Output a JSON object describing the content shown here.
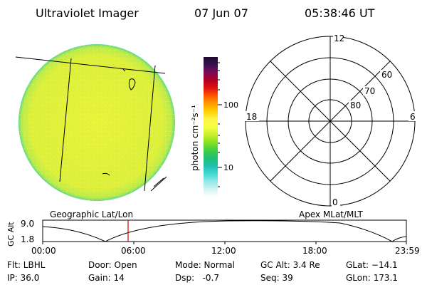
{
  "header": {
    "title": "Ultraviolet Imager",
    "date": "07 Jun 07",
    "time": "05:38:46 UT"
  },
  "colorbar": {
    "label": "photon cm⁻²s⁻¹",
    "ticks": [
      "100",
      "10"
    ],
    "scale": "log",
    "colors": [
      "#1a0a2e",
      "#3a1050",
      "#7a0a5a",
      "#b00020",
      "#e01010",
      "#ff5a00",
      "#ff9a00",
      "#ffd000",
      "#fff24a",
      "#f4ff40",
      "#c8f030",
      "#88e020",
      "#40d040",
      "#20c070",
      "#20c0b0",
      "#40d8d0",
      "#90e8e8",
      "#d0f2f2",
      "#ffffff"
    ]
  },
  "image": {
    "fill_color": "#e6f23a",
    "edge_color": "#4ed88a"
  },
  "polar": {
    "labels": {
      "top": "12",
      "left": "18",
      "right": "6",
      "bottom": "0"
    },
    "rings": [
      "60",
      "70",
      "80"
    ]
  },
  "captions": {
    "left": "Geographic Lat/Lon",
    "right": "Apex MLat/MLT"
  },
  "altitude_plot": {
    "ylabel": "GC Alt",
    "yticks": [
      "9.0",
      "1.8"
    ],
    "xticks": [
      "00:00",
      "06:00",
      "12:00",
      "18:00",
      "23:59"
    ],
    "marker_color": "#d00000"
  },
  "info": {
    "filter": "Flt: LBHL",
    "ip": "IP: 36.0",
    "door": "Door: Open",
    "gain": "Gain: 14",
    "mode": "Mode: Normal",
    "dsp": "Dsp:   -0.7",
    "gc_alt": "GC Alt: 3.4 Re",
    "seq": "Seq: 39",
    "glat": "GLat: −14.1",
    "glon": "GLon: 173.1"
  }
}
